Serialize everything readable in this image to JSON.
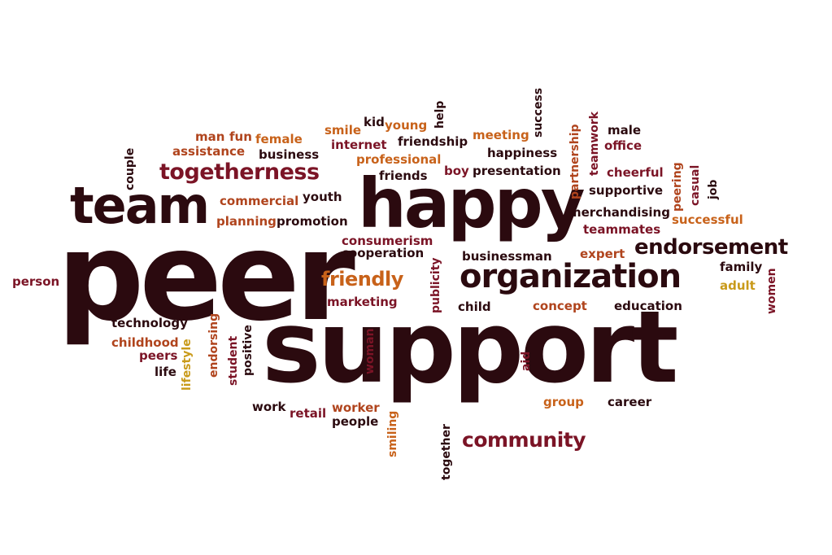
{
  "palette": {
    "dark": "#2b0a0f",
    "maroon": "#7b1426",
    "rust": "#b0441d",
    "orange": "#c8621a",
    "gold": "#c99a1a"
  },
  "words": [
    {
      "id": "peer",
      "text": "peer",
      "color": "dark"
    },
    {
      "id": "support",
      "text": "support",
      "color": "dark"
    },
    {
      "id": "happy",
      "text": "happy",
      "color": "dark"
    },
    {
      "id": "team",
      "text": "team",
      "color": "dark"
    },
    {
      "id": "organization",
      "text": "organization",
      "color": "dark"
    },
    {
      "id": "togetherness",
      "text": "togetherness",
      "color": "maroon"
    },
    {
      "id": "endorsement",
      "text": "endorsement",
      "color": "dark"
    },
    {
      "id": "community",
      "text": "community",
      "color": "maroon"
    },
    {
      "id": "friendly",
      "text": "friendly",
      "color": "orange"
    },
    {
      "id": "man",
      "text": "man",
      "color": "rust"
    },
    {
      "id": "fun",
      "text": "fun",
      "color": "rust"
    },
    {
      "id": "female",
      "text": "female",
      "color": "orange"
    },
    {
      "id": "assistance",
      "text": "assistance",
      "color": "rust"
    },
    {
      "id": "business",
      "text": "business",
      "color": "dark"
    },
    {
      "id": "couple",
      "text": "couple",
      "color": "dark"
    },
    {
      "id": "smile",
      "text": "smile",
      "color": "orange"
    },
    {
      "id": "kid",
      "text": "kid",
      "color": "dark"
    },
    {
      "id": "young",
      "text": "young",
      "color": "orange"
    },
    {
      "id": "help",
      "text": "help",
      "color": "dark"
    },
    {
      "id": "internet",
      "text": "internet",
      "color": "maroon"
    },
    {
      "id": "friendship",
      "text": "friendship",
      "color": "dark"
    },
    {
      "id": "professional",
      "text": "professional",
      "color": "orange"
    },
    {
      "id": "friends",
      "text": "friends",
      "color": "dark"
    },
    {
      "id": "meeting",
      "text": "meeting",
      "color": "orange"
    },
    {
      "id": "success",
      "text": "success",
      "color": "dark"
    },
    {
      "id": "happiness",
      "text": "happiness",
      "color": "dark"
    },
    {
      "id": "partnership",
      "text": "partnership",
      "color": "rust"
    },
    {
      "id": "teamwork",
      "text": "teamwork",
      "color": "maroon"
    },
    {
      "id": "male",
      "text": "male",
      "color": "dark"
    },
    {
      "id": "office",
      "text": "office",
      "color": "maroon"
    },
    {
      "id": "boy",
      "text": "boy",
      "color": "maroon"
    },
    {
      "id": "presentation",
      "text": "presentation",
      "color": "dark"
    },
    {
      "id": "cheerful",
      "text": "cheerful",
      "color": "maroon"
    },
    {
      "id": "supportive",
      "text": "supportive",
      "color": "dark"
    },
    {
      "id": "peering",
      "text": "peering",
      "color": "rust"
    },
    {
      "id": "casual",
      "text": "casual",
      "color": "maroon"
    },
    {
      "id": "job",
      "text": "job",
      "color": "dark"
    },
    {
      "id": "commercial",
      "text": "commercial",
      "color": "rust"
    },
    {
      "id": "youth",
      "text": "youth",
      "color": "dark"
    },
    {
      "id": "planning",
      "text": "planning",
      "color": "rust"
    },
    {
      "id": "promotion",
      "text": "promotion",
      "color": "dark"
    },
    {
      "id": "merchandising",
      "text": "merchandising",
      "color": "dark"
    },
    {
      "id": "successful",
      "text": "successful",
      "color": "orange"
    },
    {
      "id": "teammates",
      "text": "teammates",
      "color": "maroon"
    },
    {
      "id": "consumerism",
      "text": "consumerism",
      "color": "maroon"
    },
    {
      "id": "cooperation",
      "text": "cooperation",
      "color": "dark"
    },
    {
      "id": "publicity",
      "text": "publicity",
      "color": "maroon"
    },
    {
      "id": "businessman",
      "text": "businessman",
      "color": "dark"
    },
    {
      "id": "expert",
      "text": "expert",
      "color": "rust"
    },
    {
      "id": "family",
      "text": "family",
      "color": "dark"
    },
    {
      "id": "women",
      "text": "women",
      "color": "maroon"
    },
    {
      "id": "adult",
      "text": "adult",
      "color": "gold"
    },
    {
      "id": "person",
      "text": "person",
      "color": "maroon"
    },
    {
      "id": "marketing",
      "text": "marketing",
      "color": "maroon"
    },
    {
      "id": "child",
      "text": "child",
      "color": "dark"
    },
    {
      "id": "concept",
      "text": "concept",
      "color": "rust"
    },
    {
      "id": "education",
      "text": "education",
      "color": "dark"
    },
    {
      "id": "technology",
      "text": "technology",
      "color": "dark"
    },
    {
      "id": "endorsing",
      "text": "endorsing",
      "color": "rust"
    },
    {
      "id": "childhood",
      "text": "childhood",
      "color": "rust"
    },
    {
      "id": "lifestyle",
      "text": "lifestyle",
      "color": "gold"
    },
    {
      "id": "student",
      "text": "student",
      "color": "maroon"
    },
    {
      "id": "positive",
      "text": "positive",
      "color": "dark"
    },
    {
      "id": "peers",
      "text": "peers",
      "color": "maroon"
    },
    {
      "id": "life",
      "text": "life",
      "color": "dark"
    },
    {
      "id": "woman",
      "text": "woman",
      "color": "maroon"
    },
    {
      "id": "aid",
      "text": "aid",
      "color": "maroon"
    },
    {
      "id": "work",
      "text": "work",
      "color": "dark"
    },
    {
      "id": "retail",
      "text": "retail",
      "color": "maroon"
    },
    {
      "id": "worker",
      "text": "worker",
      "color": "rust"
    },
    {
      "id": "people",
      "text": "people",
      "color": "dark"
    },
    {
      "id": "smiling",
      "text": "smiling",
      "color": "orange"
    },
    {
      "id": "together",
      "text": "together",
      "color": "dark"
    },
    {
      "id": "group",
      "text": "group",
      "color": "orange"
    },
    {
      "id": "career",
      "text": "career",
      "color": "dark"
    }
  ]
}
